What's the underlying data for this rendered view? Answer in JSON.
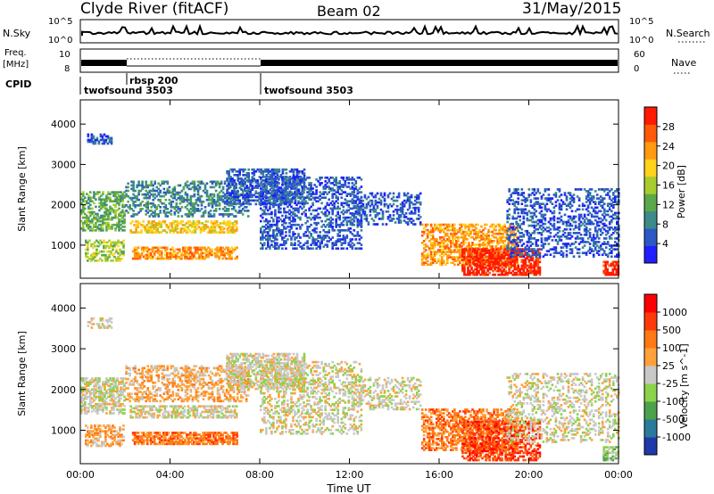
{
  "header": {
    "station": "Clyde River (fitACF)",
    "beam": "Beam 02",
    "date": "31/May/2015"
  },
  "strips": {
    "nsky_label": "N.Sky",
    "nsky_ticks": [
      "10^5",
      "10^0"
    ],
    "nsearch_label": "N.Search",
    "nsearch_ticks": [
      "10^5",
      "10^0"
    ],
    "freq_label_1": "Freq.",
    "freq_label_2": "[MHz]",
    "freq_ticks": [
      "10",
      "8"
    ],
    "nave_label": "Nave",
    "nave_ticks": [
      "60",
      "0"
    ],
    "cpid_label": "CPID",
    "cpid_segments": [
      {
        "name": "twofsound 3503",
        "start_hour": 0.0,
        "end_hour": 1.95
      },
      {
        "name": "rbsp 200",
        "start_hour": 1.95,
        "end_hour": 8.0
      },
      {
        "name": "twofsound 3503",
        "start_hour": 8.0,
        "end_hour": 24.0
      }
    ]
  },
  "chart_data": [
    {
      "type": "heatmap",
      "title": "",
      "ylabel": "Slant Range [km]",
      "xlabel": "",
      "xlim_hours": [
        0,
        24
      ],
      "ylim": [
        180,
        4600
      ],
      "x_ticks": [
        "00:00",
        "04:00",
        "08:00",
        "12:00",
        "16:00",
        "20:00",
        "00:00"
      ],
      "y_ticks": [
        "1000",
        "2000",
        "3000",
        "4000"
      ],
      "colorbar": {
        "label": "Power [dB]",
        "ticks": [
          "4",
          "8",
          "12",
          "16",
          "20",
          "24",
          "28"
        ],
        "colors": [
          "#1f1fff",
          "#2b58c6",
          "#3c8a8a",
          "#5aa84a",
          "#a8cc2c",
          "#ffd21c",
          "#ff9a12",
          "#ff5a0a",
          "#ff1a00"
        ]
      },
      "scatter_regions": [
        {
          "t0": 0.0,
          "t1": 1.95,
          "r0": 1350,
          "r1": 2300,
          "level": 3,
          "density": 0.55
        },
        {
          "t0": 0.2,
          "t1": 1.9,
          "r0": 600,
          "r1": 1100,
          "level": 4,
          "density": 0.5
        },
        {
          "t0": 0.3,
          "t1": 1.4,
          "r0": 3500,
          "r1": 3750,
          "level": 1,
          "density": 0.5
        },
        {
          "t0": 2.2,
          "t1": 7.0,
          "r0": 1300,
          "r1": 1600,
          "level": 5,
          "density": 0.6
        },
        {
          "t0": 2.3,
          "t1": 7.0,
          "r0": 650,
          "r1": 950,
          "level": 6,
          "density": 0.7
        },
        {
          "t0": 2.0,
          "t1": 7.5,
          "r0": 1700,
          "r1": 2600,
          "level": 2,
          "density": 0.4
        },
        {
          "t0": 6.5,
          "t1": 10.0,
          "r0": 2000,
          "r1": 2900,
          "level": 1,
          "density": 0.55
        },
        {
          "t0": 8.0,
          "t1": 12.5,
          "r0": 900,
          "r1": 2700,
          "level": 1,
          "density": 0.4
        },
        {
          "t0": 12.0,
          "t1": 15.2,
          "r0": 1500,
          "r1": 2300,
          "level": 1,
          "density": 0.35
        },
        {
          "t0": 15.2,
          "t1": 19.5,
          "r0": 500,
          "r1": 1500,
          "level": 6,
          "density": 0.55
        },
        {
          "t0": 17.0,
          "t1": 20.5,
          "r0": 250,
          "r1": 900,
          "level": 8,
          "density": 0.7
        },
        {
          "t0": 19.0,
          "t1": 24.0,
          "r0": 700,
          "r1": 2400,
          "level": 1,
          "density": 0.35
        },
        {
          "t0": 23.3,
          "t1": 24.0,
          "r0": 250,
          "r1": 600,
          "level": 8,
          "density": 0.7
        }
      ]
    },
    {
      "type": "heatmap",
      "title": "",
      "ylabel": "Slant Range [km]",
      "xlabel": "Time UT",
      "xlim_hours": [
        0,
        24
      ],
      "ylim": [
        180,
        4600
      ],
      "x_ticks": [
        "00:00",
        "04:00",
        "08:00",
        "12:00",
        "16:00",
        "20:00",
        "00:00"
      ],
      "y_ticks": [
        "1000",
        "2000",
        "3000",
        "4000"
      ],
      "colorbar": {
        "label": "Velocity [m s^-1]",
        "ticks": [
          "1000",
          "500",
          "100",
          "25",
          "-25",
          "-100",
          "-500",
          "-1000"
        ],
        "colors": [
          "#1f3aa8",
          "#2a7a9c",
          "#4ca14a",
          "#8cd24a",
          "#c8c8c8",
          "#ffa23a",
          "#ff7a14",
          "#ff3a0a",
          "#ff0000"
        ]
      },
      "scatter_regions": [
        {
          "t0": 0.0,
          "t1": 1.95,
          "r0": 1400,
          "r1": 2300,
          "level": 4,
          "density": 0.6
        },
        {
          "t0": 0.2,
          "t1": 1.9,
          "r0": 600,
          "r1": 1100,
          "level": 5,
          "density": 0.5
        },
        {
          "t0": 0.3,
          "t1": 1.4,
          "r0": 3500,
          "r1": 3750,
          "level": 4,
          "density": 0.5
        },
        {
          "t0": 2.2,
          "t1": 7.0,
          "r0": 1300,
          "r1": 1600,
          "level": 4,
          "density": 0.6
        },
        {
          "t0": 2.3,
          "t1": 7.0,
          "r0": 650,
          "r1": 950,
          "level": 6,
          "density": 0.75
        },
        {
          "t0": 2.0,
          "t1": 7.5,
          "r0": 1700,
          "r1": 2600,
          "level": 5,
          "density": 0.45
        },
        {
          "t0": 6.5,
          "t1": 10.0,
          "r0": 2000,
          "r1": 2900,
          "level": 4,
          "density": 0.55
        },
        {
          "t0": 8.0,
          "t1": 12.5,
          "r0": 900,
          "r1": 2700,
          "level": 4,
          "density": 0.35
        },
        {
          "t0": 12.0,
          "t1": 15.2,
          "r0": 1500,
          "r1": 2300,
          "level": 4,
          "density": 0.3
        },
        {
          "t0": 15.2,
          "t1": 19.5,
          "r0": 500,
          "r1": 1500,
          "level": 6,
          "density": 0.55
        },
        {
          "t0": 17.0,
          "t1": 20.5,
          "r0": 250,
          "r1": 1200,
          "level": 7,
          "density": 0.55
        },
        {
          "t0": 19.0,
          "t1": 24.0,
          "r0": 700,
          "r1": 2400,
          "level": 4,
          "density": 0.3
        },
        {
          "t0": 23.3,
          "t1": 24.0,
          "r0": 250,
          "r1": 600,
          "level": 3,
          "density": 0.7
        }
      ]
    }
  ]
}
